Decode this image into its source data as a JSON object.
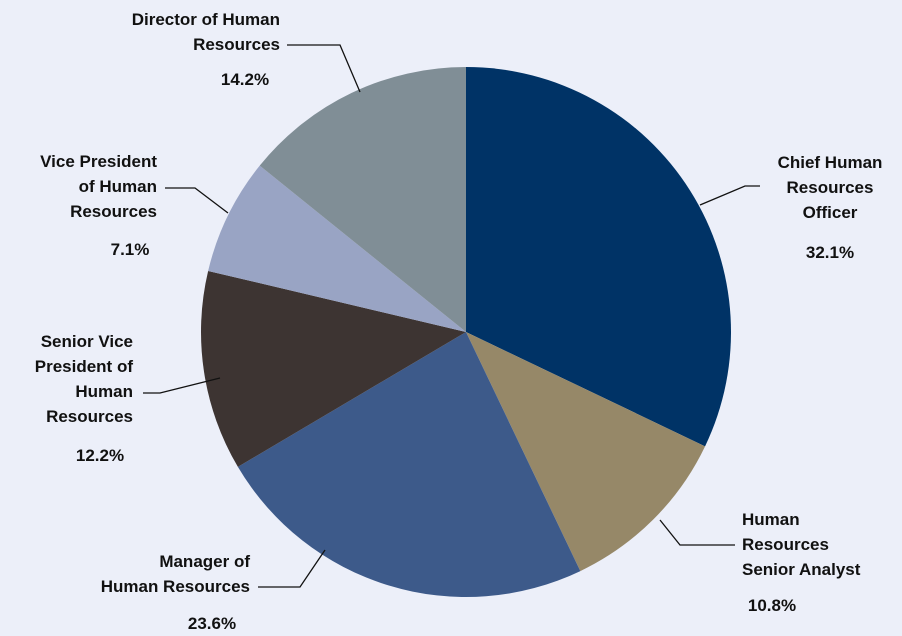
{
  "chart_data": {
    "type": "pie",
    "categories": [
      "Chief Human\nResources\nOfficer",
      "Human\nResources\nSenior Analyst",
      "Manager of\nHuman Resources",
      "Senior Vice\nPresident of\nHuman\nResources",
      "Vice President\nof Human\nResources",
      "Director of Human\nResources"
    ],
    "values": [
      32.1,
      10.8,
      23.6,
      12.2,
      7.1,
      14.2
    ],
    "value_labels": [
      "32.1%",
      "10.8%",
      "23.6%",
      "12.2%",
      "7.1%",
      "14.2%"
    ],
    "colors": [
      "#003366",
      "#968868",
      "#3d5a8a",
      "#3d3432",
      "#99a4c4",
      "#808e96"
    ]
  }
}
